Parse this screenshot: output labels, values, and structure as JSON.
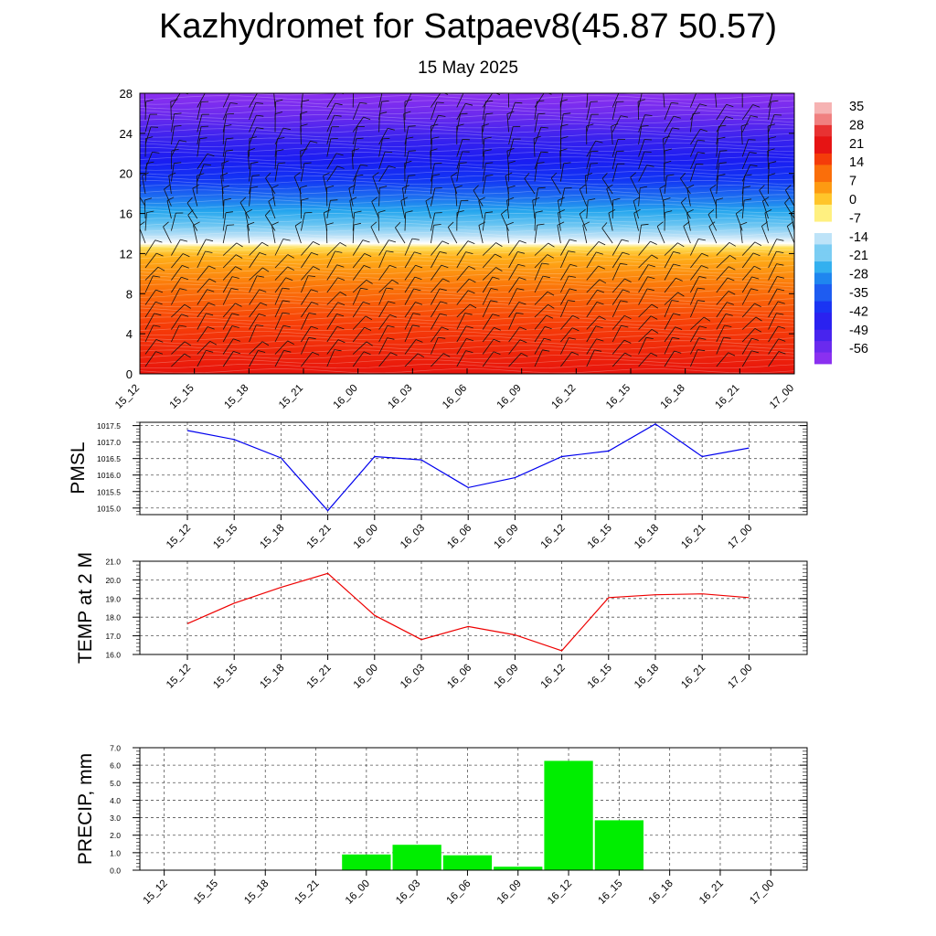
{
  "header": {
    "title": "Kazhydromet for Satpaev8(45.87 50.57)",
    "date": "15 May 2025"
  },
  "colors": {
    "pmsl_line": "#0000ee",
    "temp_line": "#ee0000",
    "precip_bar": "#00ee00"
  },
  "chart_data": [
    {
      "type": "heatmap",
      "title": "",
      "ylim": [
        0,
        28
      ],
      "yticks": [
        "0",
        "4",
        "8",
        "12",
        "16",
        "20",
        "24",
        "28"
      ],
      "x_labels": [
        "15_12",
        "15_15",
        "15_18",
        "15_21",
        "16_00",
        "16_03",
        "16_06",
        "16_09",
        "16_12",
        "16_15",
        "16_18",
        "16_21",
        "17_00"
      ],
      "colorbar_labels": [
        "35",
        "28",
        "21",
        "14",
        "7",
        "0",
        "-7",
        "-14",
        "-21",
        "-28",
        "-35",
        "-42",
        "-49",
        "-56"
      ],
      "colorbar_range": [
        -60,
        36
      ],
      "overlay": "wind-barbs"
    },
    {
      "type": "line",
      "ylabel": "PMSL",
      "ylim": [
        1014.8,
        1017.6
      ],
      "yticks": [
        "1015.0",
        "1015.5",
        "1016.0",
        "1016.5",
        "1017.0",
        "1017.5"
      ],
      "ytick_values": [
        1015.0,
        1015.5,
        1016.0,
        1016.5,
        1017.0,
        1017.5
      ],
      "x": [
        "15_12",
        "15_15",
        "15_18",
        "15_21",
        "16_00",
        "16_03",
        "16_06",
        "16_09",
        "16_12",
        "16_15",
        "16_18",
        "16_21",
        "17_00"
      ],
      "values": [
        1017.35,
        1017.08,
        1016.52,
        1014.92,
        1016.56,
        1016.46,
        1015.62,
        1015.92,
        1016.56,
        1016.73,
        1017.55,
        1016.56,
        1016.82
      ],
      "grid": true
    },
    {
      "type": "line",
      "ylabel": "TEMP at 2 M",
      "ylim": [
        16.0,
        21.0
      ],
      "yticks": [
        "16.0",
        "17.0",
        "18.0",
        "19.0",
        "20.0",
        "21.0"
      ],
      "ytick_values": [
        16,
        17,
        18,
        19,
        20,
        21
      ],
      "x": [
        "15_12",
        "15_15",
        "15_18",
        "15_21",
        "16_00",
        "16_03",
        "16_06",
        "16_09",
        "16_12",
        "16_15",
        "16_18",
        "16_21",
        "17_00"
      ],
      "values": [
        17.65,
        18.75,
        19.6,
        20.35,
        18.1,
        16.8,
        17.5,
        17.05,
        16.2,
        19.05,
        19.2,
        19.25,
        19.05
      ],
      "grid": true
    },
    {
      "type": "bar",
      "ylabel": "PRECIP, mm",
      "ylim": [
        0,
        7.0
      ],
      "yticks": [
        "0.0",
        "1.0",
        "2.0",
        "3.0",
        "4.0",
        "5.0",
        "6.0",
        "7.0"
      ],
      "ytick_values": [
        0,
        1,
        2,
        3,
        4,
        5,
        6,
        7
      ],
      "categories": [
        "15_12",
        "15_15",
        "15_18",
        "15_21",
        "16_00",
        "16_03",
        "16_06",
        "16_09",
        "16_12",
        "16_15",
        "16_18",
        "16_21",
        "17_00"
      ],
      "values": [
        0,
        0,
        0,
        0,
        0.9,
        1.45,
        0.85,
        0.2,
        6.25,
        2.85,
        0,
        0,
        0
      ],
      "grid": true
    }
  ]
}
